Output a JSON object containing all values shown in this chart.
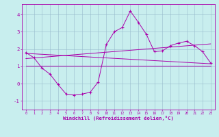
{
  "xlabel": "Windchill (Refroidissement éolien,°C)",
  "xlim": [
    -0.5,
    23.5
  ],
  "ylim": [
    -1.5,
    4.6
  ],
  "yticks": [
    -1,
    0,
    1,
    2,
    3,
    4
  ],
  "xticks": [
    0,
    1,
    2,
    3,
    4,
    5,
    6,
    7,
    8,
    9,
    10,
    11,
    12,
    13,
    14,
    15,
    16,
    17,
    18,
    19,
    20,
    21,
    22,
    23
  ],
  "bg_color": "#c8eeee",
  "line_color": "#aa00aa",
  "grid_color": "#99bbcc",
  "line1_x": [
    0,
    1,
    2,
    3,
    4,
    5,
    6,
    7,
    8,
    9,
    10,
    11,
    12,
    13,
    14,
    15,
    16,
    17,
    18,
    19,
    20,
    21,
    22,
    23
  ],
  "line1_y": [
    1.8,
    1.5,
    0.9,
    0.55,
    -0.05,
    -0.6,
    -0.65,
    -0.6,
    -0.5,
    0.1,
    2.25,
    3.0,
    3.25,
    4.2,
    3.55,
    2.85,
    1.85,
    1.9,
    2.2,
    2.35,
    2.45,
    2.2,
    1.85,
    1.2
  ],
  "line2_x": [
    0,
    23
  ],
  "line2_y": [
    1.75,
    1.15
  ],
  "line3_x": [
    0,
    23
  ],
  "line3_y": [
    1.05,
    1.05
  ],
  "line4_x": [
    0,
    23
  ],
  "line4_y": [
    1.45,
    2.3
  ]
}
